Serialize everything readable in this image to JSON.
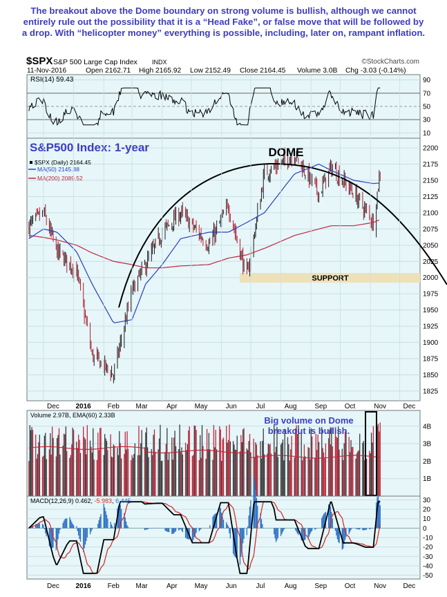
{
  "commentary": "The breakout above the Dome boundary on strong volume is bullish, although we cannot entirely rule out the possibility that it is a “Head Fake”, or false move that will be followed by a drop. With “helicopter money” everything is possible, including, later on, rampant inflation.",
  "header": {
    "symbol": "$SPX",
    "name": "S&P 500 Large Cap Index",
    "exchange": "INDX",
    "watermark": "©StockCharts.com",
    "date": "11-Nov-2016",
    "open": "Open 2162.71",
    "high": "High 2165.92",
    "low": "Low 2152.49",
    "close": "Close 2164.45",
    "volume": "Volume 3.0B",
    "chg": "Chg -3.03 (-0.14%)"
  },
  "colors": {
    "panel_bg": "#e6f6f9",
    "price": "#6b0f1a",
    "ma50": "#2a3ebd",
    "ma200": "#c0263a",
    "dome": "#000000",
    "support": "#efe1b7",
    "annotation": "#3d3dbf",
    "macd": "#000000",
    "signal": "#d2312b",
    "histogram": "#2a6fc4",
    "volume_up": "#3a3a3a",
    "volume_down": "#c0263a"
  },
  "rsi": {
    "label": "RSI(14) 59.43",
    "ticks": [
      "90",
      "70",
      "50",
      "30",
      "10"
    ]
  },
  "price_panel": {
    "title": "S&P500 Index: 1-year",
    "legend": [
      "$SPX (Daily) 2164.45",
      "MA(50) 2145.88",
      "MA(200) 2089.52"
    ],
    "dome_label": "DOME",
    "support_label": "SUPPORT",
    "ticks": [
      "2200",
      "2175",
      "2150",
      "2125",
      "2100",
      "2075",
      "2050",
      "2025",
      "2000",
      "1975",
      "1950",
      "1925",
      "1900",
      "1875",
      "1850",
      "1825"
    ]
  },
  "volume_panel": {
    "label": "Volume 2.97B, EMA(60) 2.33B",
    "annotation_line1": "Big volume on Dome",
    "annotation_line2": "breakout is bullish.",
    "ticks": [
      "4B",
      "3B",
      "2B",
      "1B"
    ]
  },
  "macd_panel": {
    "label_prefix": "MACD(12,26,9) 0.462, ",
    "label_signal": "-5.983",
    "label_sep": ", ",
    "label_hist": "6.445",
    "ticks": [
      "30",
      "20",
      "10",
      "0",
      "-10",
      "-20",
      "-30",
      "-40",
      "-50"
    ]
  },
  "x_axis": [
    "Dec",
    "2016",
    "Feb",
    "Mar",
    "Apr",
    "May",
    "Jun",
    "Jul",
    "Aug",
    "Sep",
    "Oct",
    "Nov",
    "Dec"
  ],
  "chart_data": {
    "type": "line",
    "title": "S&P500 Index: 1-year",
    "x": [
      "2015-11-16",
      "2015-12-01",
      "2015-12-15",
      "2016-01-04",
      "2016-01-20",
      "2016-02-11",
      "2016-03-01",
      "2016-03-15",
      "2016-04-01",
      "2016-04-20",
      "2016-05-19",
      "2016-06-08",
      "2016-06-27",
      "2016-07-15",
      "2016-08-15",
      "2016-09-09",
      "2016-09-22",
      "2016-10-15",
      "2016-11-04",
      "2016-11-11"
    ],
    "series": [
      {
        "name": "$SPX (Daily)",
        "values": [
          2080,
          2100,
          2040,
          2010,
          1880,
          1850,
          1980,
          2020,
          2070,
          2100,
          2050,
          2110,
          2000,
          2160,
          2190,
          2130,
          2170,
          2130,
          2085,
          2164.45
        ]
      },
      {
        "name": "MA(50)",
        "values": [
          2060,
          2075,
          2070,
          2040,
          1990,
          1930,
          1935,
          1990,
          2020,
          2060,
          2070,
          2070,
          2085,
          2100,
          2160,
          2175,
          2165,
          2150,
          2145,
          2145.88
        ]
      },
      {
        "name": "MA(200)",
        "values": [
          2065,
          2062,
          2058,
          2050,
          2038,
          2025,
          2020,
          2015,
          2015,
          2018,
          2020,
          2030,
          2035,
          2045,
          2065,
          2075,
          2080,
          2080,
          2085,
          2089.52
        ]
      }
    ],
    "ylim": [
      1810,
      2215
    ],
    "annotations": [
      "DOME",
      "SUPPORT",
      "Big volume on Dome breakout is bullish."
    ]
  }
}
